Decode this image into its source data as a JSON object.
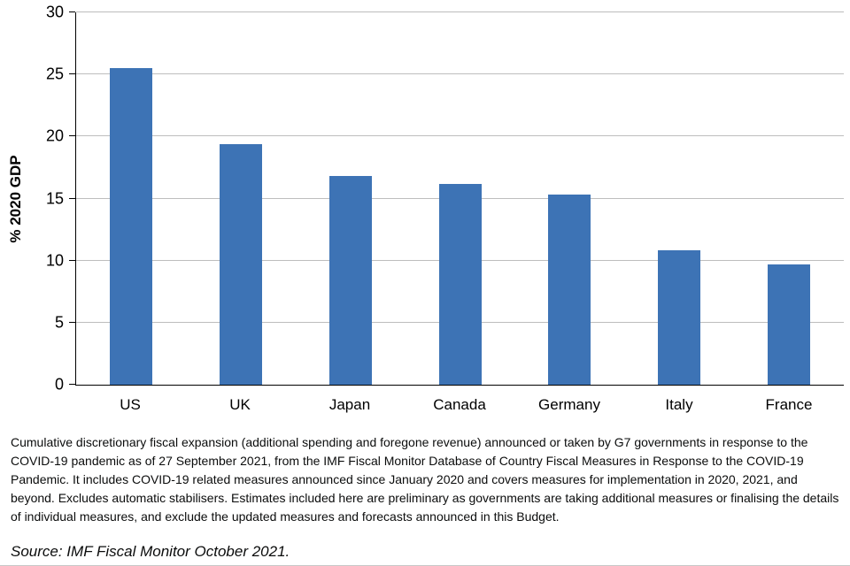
{
  "chart_data": {
    "type": "bar",
    "categories": [
      "US",
      "UK",
      "Japan",
      "Canada",
      "Germany",
      "Italy",
      "France"
    ],
    "values": [
      25.5,
      19.4,
      16.8,
      16.2,
      15.3,
      10.8,
      9.7
    ],
    "title": "",
    "xlabel": "",
    "ylabel": "% 2020 GDP",
    "ylim": [
      0,
      30
    ],
    "ytick_step": 5,
    "bar_color": "#3d73b5",
    "grid": true,
    "legend": "none"
  },
  "caption": "Cumulative discretionary fiscal expansion (additional spending and foregone revenue) announced or taken by G7 governments in response to the COVID-19 pandemic as of 27 September 2021, from the IMF Fiscal Monitor Database of Country Fiscal Measures in Response to the COVID-19 Pandemic. It includes COVID-19 related measures announced since January 2020 and covers measures for implementation in 2020, 2021, and beyond. Excludes automatic stabilisers. Estimates included here are preliminary as governments are taking additional measures or finalising the details of individual measures, and exclude the updated measures and forecasts announced in this Budget.",
  "source": "Source: IMF Fiscal Monitor October 2021."
}
